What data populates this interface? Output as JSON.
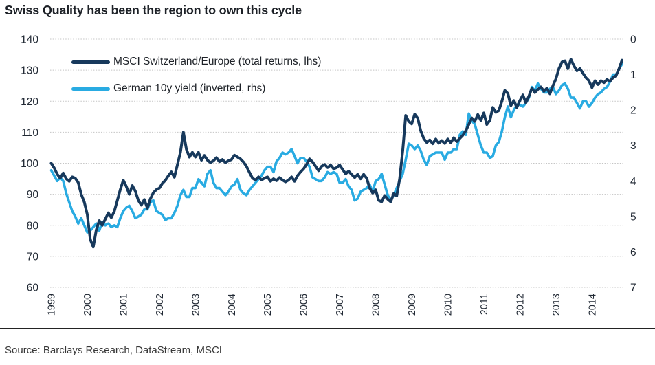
{
  "title": "Swiss Quality has been the region to own this cycle",
  "source": "Source: Barclays Research, DataStream, MSCI",
  "colors": {
    "msci_line": "#17395C",
    "german_line": "#29ABE2",
    "gridline": "#C4C4C4",
    "axis_text": "#222A35",
    "title_text": "#1D2127",
    "source_text": "#383838",
    "divider": "#232323"
  },
  "chart_data": {
    "type": "line",
    "title": "Swiss Quality has been the region to own this cycle",
    "x_unit": "monthly",
    "x_start": "1999-01",
    "x_end": "2014-11",
    "x_tick_labels": [
      "1999",
      "2000",
      "2001",
      "2002",
      "2003",
      "2004",
      "2005",
      "2006",
      "2007",
      "2008",
      "2009",
      "2010",
      "2011",
      "2012",
      "2013",
      "2014"
    ],
    "left_axis": {
      "min": 60,
      "max": 140,
      "step": 10,
      "ticks": [
        "140",
        "130",
        "120",
        "110",
        "100",
        "90",
        "80",
        "70",
        "60"
      ]
    },
    "right_axis": {
      "min": 0,
      "max": 7,
      "step": 1,
      "ticks": [
        "0",
        "1",
        "2",
        "3",
        "4",
        "5",
        "6",
        "7"
      ],
      "note": "yield plotted inverted"
    },
    "legend_position": "top-left-inside",
    "grid": "horizontal-dotted",
    "series": [
      {
        "name": "MSCI Switzerland/Europe (total returns, lhs)",
        "axis": "left",
        "color": "#17395C",
        "values": [
          100,
          98.5,
          96.5,
          95.2,
          96.8,
          95,
          94.2,
          95.6,
          95.2,
          93.8,
          90,
          87.5,
          83.5,
          75.5,
          73,
          78.5,
          81.5,
          80,
          82,
          84,
          82.5,
          84.5,
          88,
          91.5,
          94.5,
          92.5,
          90,
          92.8,
          91,
          88,
          86.5,
          88.3,
          85.5,
          88.5,
          90.5,
          91.5,
          92,
          93.5,
          94.5,
          96,
          97.2,
          95.5,
          99.5,
          103.5,
          110,
          104.5,
          102,
          103.5,
          102,
          103.5,
          101,
          102.5,
          101,
          100.2,
          100.8,
          101.8,
          100.5,
          101.2,
          100.2,
          100.8,
          101.2,
          102.6,
          102,
          101.4,
          100.4,
          99,
          97,
          95.2,
          94.6,
          95.6,
          94.6,
          95.2,
          95.6,
          94.2,
          95,
          94.4,
          95.4,
          94.6,
          94,
          94.6,
          95.6,
          94.2,
          96,
          97.2,
          98.2,
          99.6,
          101.4,
          100.4,
          99,
          97.6,
          99,
          99.6,
          98.6,
          99.4,
          98.2,
          98.6,
          99.4,
          98,
          96.6,
          97.4,
          96.4,
          95.4,
          96.4,
          95,
          96.4,
          95.2,
          92,
          90.4,
          91.4,
          88,
          87.6,
          89.6,
          88.4,
          87.6,
          90.2,
          89.5,
          95,
          104,
          115.4,
          113.5,
          112.7,
          115.8,
          114.5,
          110.5,
          108,
          106.7,
          107.5,
          106.3,
          107.8,
          106.5,
          107.3,
          106.4,
          107.8,
          106.6,
          108.2,
          107,
          108,
          109,
          110.5,
          112.5,
          114.6,
          113.5,
          115.7,
          113.8,
          116.2,
          112.5,
          113.8,
          118,
          116.4,
          117,
          120,
          123.5,
          122.5,
          118.6,
          120.2,
          118,
          120.2,
          122,
          119.5,
          121.6,
          124.2,
          122.8,
          123.8,
          124.6,
          123.2,
          124.2,
          122.4,
          125,
          127.2,
          130.5,
          132.6,
          133,
          130.5,
          133.5,
          131.4,
          129.8,
          130.5,
          129,
          127.6,
          126.6,
          124.4,
          126.6,
          125.4,
          126.6,
          126,
          127,
          126.4,
          127.6,
          128.2,
          130.4,
          133.2
        ]
      },
      {
        "name": "German 10y yield (inverted, rhs)",
        "axis": "right",
        "color": "#29ABE2",
        "values": [
          3.7,
          3.85,
          4,
          3.9,
          4,
          4.35,
          4.6,
          4.85,
          5,
          5.2,
          5.05,
          5.25,
          5.45,
          5.4,
          5.3,
          5.2,
          5.4,
          5.15,
          5.25,
          5.2,
          5.3,
          5.25,
          5.3,
          5.05,
          4.85,
          4.75,
          4.7,
          4.85,
          5.05,
          5,
          4.95,
          4.8,
          4.8,
          4.6,
          4.55,
          4.85,
          4.9,
          4.95,
          5.1,
          5.05,
          5.05,
          4.9,
          4.7,
          4.4,
          4.25,
          4.45,
          4.45,
          4.2,
          4.2,
          3.95,
          4.05,
          4.15,
          3.8,
          3.7,
          4.05,
          4.2,
          4.2,
          4.3,
          4.4,
          4.3,
          4.15,
          4.1,
          3.95,
          4.25,
          4.35,
          4.4,
          4.25,
          4.15,
          4.05,
          3.95,
          3.85,
          3.7,
          3.6,
          3.6,
          3.75,
          3.45,
          3.35,
          3.2,
          3.25,
          3.2,
          3.1,
          3.3,
          3.5,
          3.35,
          3.35,
          3.45,
          3.6,
          3.9,
          3.95,
          4,
          4,
          3.9,
          3.75,
          3.8,
          3.75,
          3.8,
          4.05,
          4.05,
          3.95,
          4.15,
          4.25,
          4.55,
          4.5,
          4.3,
          4.25,
          4.2,
          4.1,
          4.3,
          4,
          3.95,
          3.8,
          4.1,
          4.4,
          4.55,
          4.4,
          4.2,
          4,
          3.8,
          3.4,
          2.95,
          3,
          3.1,
          3,
          3.15,
          3.4,
          3.55,
          3.3,
          3.25,
          3.2,
          3.2,
          3.2,
          3.4,
          3.2,
          3.2,
          3.1,
          3.1,
          2.7,
          2.6,
          2.7,
          2.1,
          2.3,
          2.4,
          2.7,
          3,
          3.2,
          3.2,
          3.35,
          3.3,
          3,
          2.9,
          2.6,
          2.2,
          1.9,
          2.2,
          2,
          1.85,
          1.85,
          1.9,
          1.8,
          1.65,
          1.35,
          1.45,
          1.25,
          1.4,
          1.5,
          1.5,
          1.4,
          1.35,
          1.55,
          1.45,
          1.3,
          1.25,
          1.4,
          1.65,
          1.65,
          1.8,
          1.95,
          1.75,
          1.75,
          1.9,
          1.8,
          1.65,
          1.55,
          1.5,
          1.4,
          1.35,
          1.2,
          1,
          1,
          0.85,
          0.7
        ]
      }
    ]
  }
}
